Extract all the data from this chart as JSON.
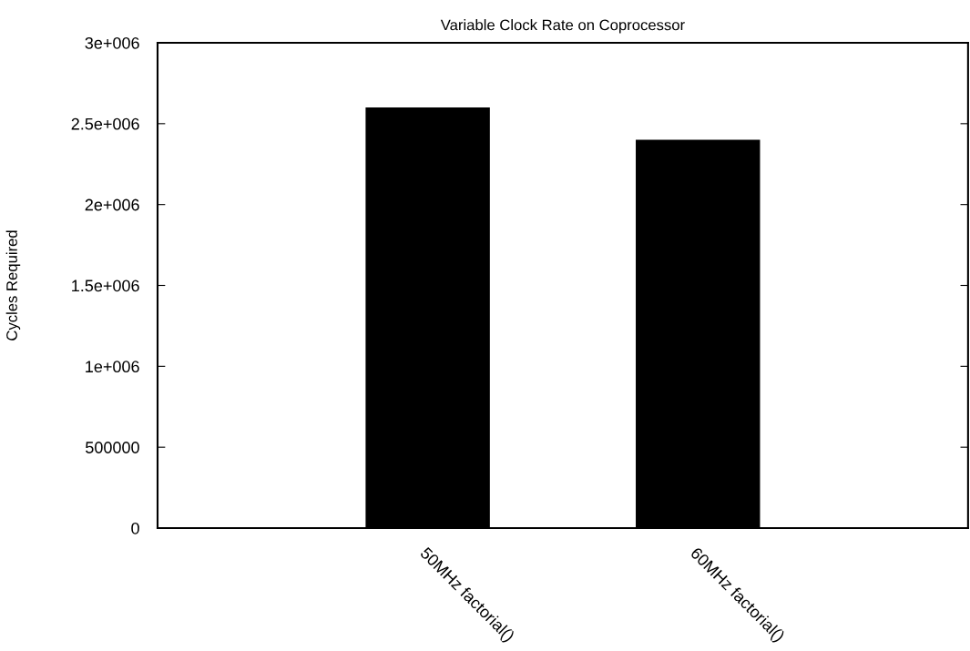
{
  "chart_data": {
    "type": "bar",
    "title": "Variable Clock Rate on Coprocessor",
    "ylabel": "Cycles Required",
    "categories": [
      "50MHz factorial()",
      "60MHz factorial()"
    ],
    "values": [
      2600000,
      2400000
    ],
    "color": "#000000",
    "ylim": [
      0,
      3000000
    ],
    "yticks": [
      0,
      {
        "value": 500000,
        "label": "500000"
      },
      {
        "value": 1000000,
        "label": "1e+006"
      },
      {
        "value": 1500000,
        "label": "1.5e+006"
      },
      {
        "value": 2000000,
        "label": "2e+006"
      },
      {
        "value": 2500000,
        "label": "2.5e+006"
      },
      {
        "value": 3000000,
        "label": "3e+006"
      }
    ],
    "grid": false
  }
}
